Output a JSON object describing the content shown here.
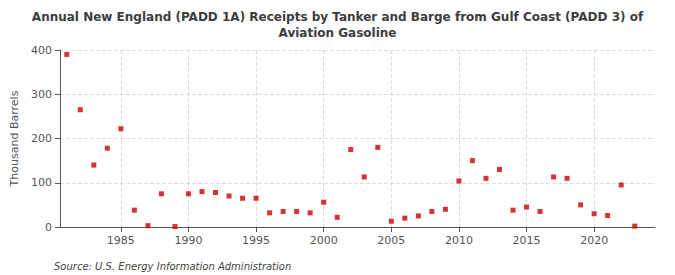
{
  "chart_data": {
    "type": "scatter",
    "title": "Annual New England (PADD 1A) Receipts by Tanker and Barge from Gulf Coast (PADD 3) of\nAviation Gasoline",
    "ylabel": "Thousand Barrels",
    "source": "Source: U.S. Energy Information Administration",
    "x": [
      1981,
      1982,
      1983,
      1984,
      1985,
      1986,
      1987,
      1988,
      1989,
      1990,
      1991,
      1992,
      1993,
      1994,
      1995,
      1996,
      1997,
      1998,
      1999,
      2000,
      2001,
      2002,
      2003,
      2004,
      2005,
      2006,
      2007,
      2008,
      2009,
      2010,
      2011,
      2012,
      2013,
      2014,
      2015,
      2016,
      2017,
      2018,
      2019,
      2020,
      2021,
      2022,
      2023
    ],
    "values": [
      390,
      265,
      140,
      178,
      222,
      38,
      3,
      75,
      1,
      75,
      80,
      78,
      70,
      65,
      65,
      32,
      35,
      35,
      32,
      56,
      22,
      175,
      113,
      180,
      13,
      20,
      25,
      35,
      40,
      104,
      150,
      110,
      130,
      38,
      45,
      35,
      113,
      110,
      50,
      30,
      26,
      95,
      2
    ],
    "color": "#cc0000",
    "marker": "square",
    "xlim": [
      1980.5,
      2024.5
    ],
    "xticks": [
      1985,
      1990,
      1995,
      2000,
      2005,
      2010,
      2015,
      2020
    ],
    "ylim": [
      0,
      400
    ],
    "yticks": [
      0,
      100,
      200,
      300,
      400
    ],
    "grid": true
  }
}
